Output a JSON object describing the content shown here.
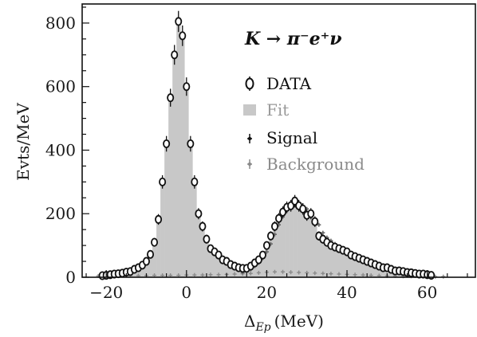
{
  "chart_data": {
    "type": "bar",
    "title": "",
    "annotation": "K → π⁻e⁺ν",
    "xlabel": "Δ",
    "xlabel_sub": "Ep",
    "xlabel_unit": "(MeV)",
    "ylabel": "Evts/MeV",
    "xlim": [
      -26,
      72
    ],
    "ylim": [
      0,
      860
    ],
    "xticks": [
      -20,
      0,
      20,
      40,
      60
    ],
    "xtick_labels": [
      "−20",
      "0",
      "20",
      "40",
      "60"
    ],
    "yticks": [
      0,
      200,
      400,
      600,
      800
    ],
    "ytick_labels": [
      "0",
      "200",
      "400",
      "600",
      "800"
    ],
    "grid": false,
    "legend_position": "top-right",
    "bin_width": 1,
    "colors": {
      "fit": "#c8c8c8",
      "signal": "#111111",
      "background": "#8a8a8a",
      "data": "#111111"
    },
    "legend": [
      {
        "key": "data",
        "label": "DATA"
      },
      {
        "key": "fit",
        "label": "Fit"
      },
      {
        "key": "signal",
        "label": "Signal"
      },
      {
        "key": "background",
        "label": "Background"
      }
    ],
    "data": {
      "x": [
        -21,
        -20,
        -19,
        -18,
        -17,
        -16,
        -15,
        -14,
        -13,
        -12,
        -11,
        -10,
        -9,
        -8,
        -7,
        -6,
        -5,
        -4,
        -3,
        -2,
        -1,
        0,
        1,
        2,
        3,
        4,
        5,
        6,
        7,
        8,
        9,
        10,
        11,
        12,
        13,
        14,
        15,
        16,
        17,
        18,
        19,
        20,
        21,
        22,
        23,
        24,
        25,
        26,
        27,
        28,
        29,
        30,
        31,
        32,
        33,
        34,
        35,
        36,
        37,
        38,
        39,
        40,
        41,
        42,
        43,
        44,
        45,
        46,
        47,
        48,
        49,
        50,
        51,
        52,
        53,
        54,
        55,
        56,
        57,
        58,
        59,
        60,
        61
      ],
      "y": [
        5,
        6,
        8,
        10,
        11,
        13,
        16,
        18,
        25,
        30,
        38,
        50,
        72,
        110,
        182,
        300,
        420,
        565,
        700,
        805,
        760,
        600,
        420,
        300,
        200,
        160,
        120,
        90,
        80,
        70,
        55,
        50,
        40,
        35,
        30,
        28,
        28,
        35,
        45,
        55,
        70,
        100,
        130,
        160,
        185,
        205,
        220,
        225,
        240,
        225,
        215,
        195,
        200,
        175,
        130,
        120,
        110,
        100,
        95,
        90,
        85,
        80,
        70,
        65,
        60,
        55,
        50,
        45,
        40,
        35,
        30,
        30,
        25,
        20,
        20,
        18,
        15,
        14,
        12,
        10,
        10,
        8,
        6
      ]
    },
    "signal_peak2": {
      "x": [
        14,
        15,
        16,
        17,
        18,
        19,
        20,
        21,
        22,
        23,
        24,
        25,
        26,
        27,
        28,
        29,
        30,
        31,
        32,
        33,
        34,
        35,
        36,
        37,
        38,
        39,
        40,
        41,
        42,
        43,
        44,
        45,
        46,
        47,
        48,
        49,
        50,
        51,
        52,
        53,
        54,
        55,
        56,
        57,
        58,
        59,
        60,
        61
      ],
      "y": [
        15,
        18,
        25,
        35,
        45,
        60,
        80,
        105,
        135,
        165,
        190,
        210,
        220,
        225,
        230,
        225,
        215,
        200,
        185,
        165,
        140,
        125,
        115,
        105,
        95,
        88,
        82,
        76,
        70,
        64,
        58,
        52,
        47,
        42,
        37,
        33,
        29,
        26,
        23,
        20,
        18,
        16,
        14,
        12,
        10,
        9,
        8,
        6
      ]
    },
    "background_points": {
      "x": [
        -22,
        -20,
        -18,
        -16,
        -14,
        -12,
        -10,
        -8,
        -6,
        -4,
        -2,
        0,
        2,
        4,
        6,
        8,
        10,
        12,
        14,
        16,
        18,
        20,
        22,
        24,
        26,
        28,
        30,
        32,
        34,
        36,
        38,
        40,
        42,
        44,
        46,
        48,
        50,
        52,
        54,
        56,
        58,
        60,
        62,
        64
      ],
      "y": [
        4,
        4,
        4,
        5,
        5,
        5,
        5,
        6,
        6,
        6,
        6,
        7,
        7,
        7,
        8,
        8,
        9,
        10,
        11,
        12,
        14,
        16,
        17,
        17,
        16,
        15,
        14,
        13,
        12,
        11,
        10,
        9,
        8,
        7,
        6,
        5,
        4,
        4,
        3,
        3,
        3,
        2,
        2,
        2
      ]
    }
  }
}
